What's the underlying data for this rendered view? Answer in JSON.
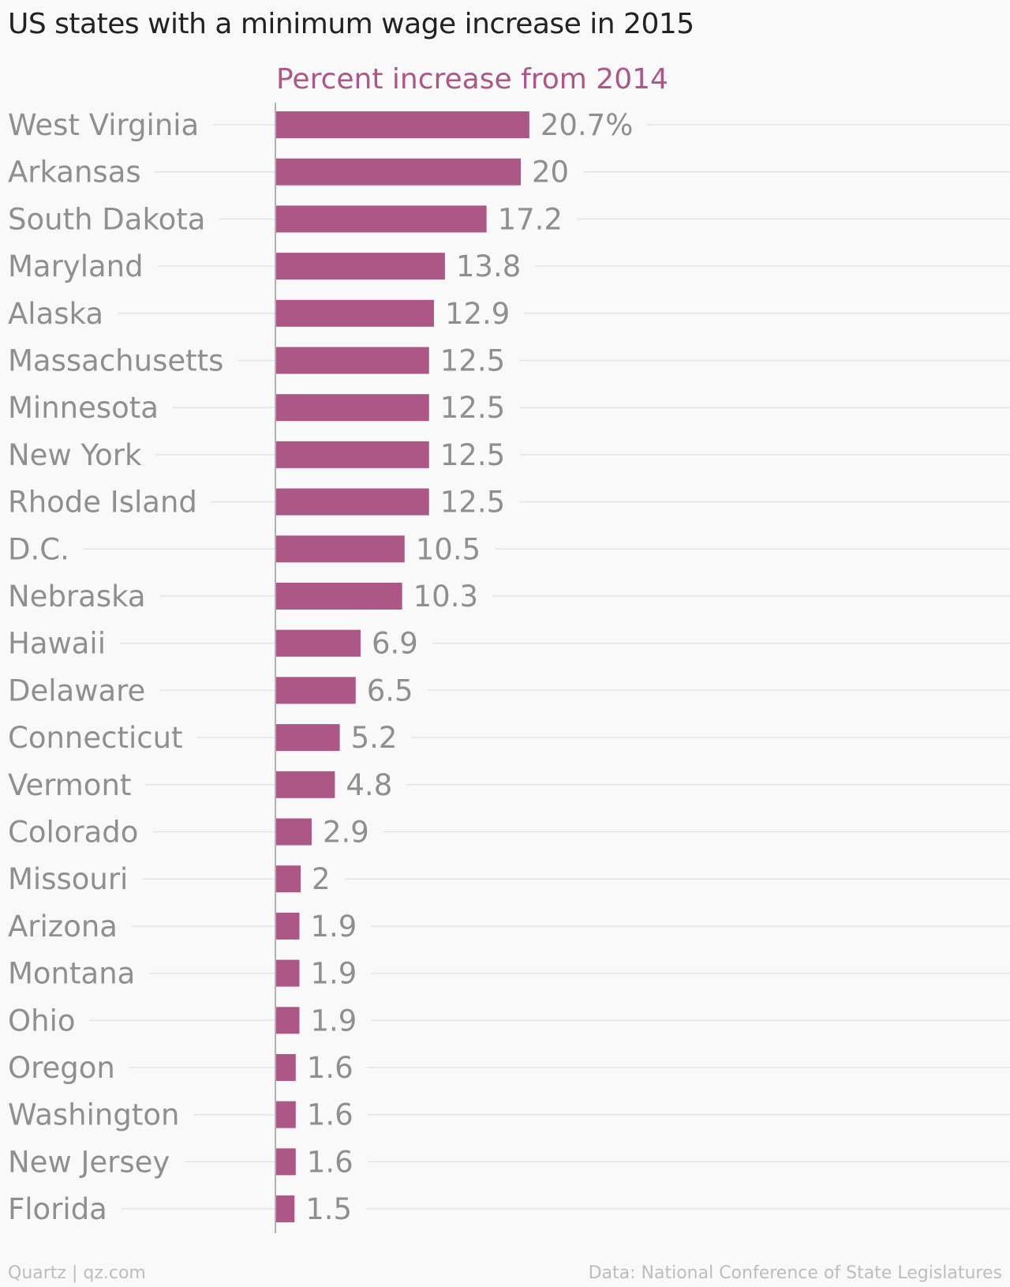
{
  "colors": {
    "bar": "#ad5787",
    "label": "#8f8f8f",
    "subtitle": "#ad5787",
    "gridline": "#e4e4e4",
    "axis": "#999999"
  },
  "chart_data": {
    "type": "bar",
    "orientation": "horizontal",
    "title": "US states with a minimum wage increase in 2015",
    "subtitle": "Percent increase from 2014",
    "value_suffix_first": "%",
    "categories": [
      "West Virginia",
      "Arkansas",
      "South Dakota",
      "Maryland",
      "Alaska",
      "Massachusetts",
      "Minnesota",
      "New York",
      "Rhode Island",
      "D.C.",
      "Nebraska",
      "Hawaii",
      "Delaware",
      "Connecticut",
      "Vermont",
      "Colorado",
      "Missouri",
      "Arizona",
      "Montana",
      "Ohio",
      "Oregon",
      "Washington",
      "New Jersey",
      "Florida"
    ],
    "values": [
      20.7,
      20,
      17.2,
      13.8,
      12.9,
      12.5,
      12.5,
      12.5,
      12.5,
      10.5,
      10.3,
      6.9,
      6.5,
      5.2,
      4.8,
      2.9,
      2,
      1.9,
      1.9,
      1.9,
      1.6,
      1.6,
      1.6,
      1.5
    ],
    "value_labels": [
      "20.7%",
      "20",
      "17.2",
      "13.8",
      "12.9",
      "12.5",
      "12.5",
      "12.5",
      "12.5",
      "10.5",
      "10.3",
      "6.9",
      "6.5",
      "5.2",
      "4.8",
      "2.9",
      "2",
      "1.9",
      "1.9",
      "1.9",
      "1.6",
      "1.6",
      "1.6",
      "1.5"
    ],
    "xlim": [
      0,
      60
    ],
    "grid": true
  },
  "footer": {
    "left": "Quartz | qz.com",
    "right": "Data: National Conference of State Legislatures"
  }
}
